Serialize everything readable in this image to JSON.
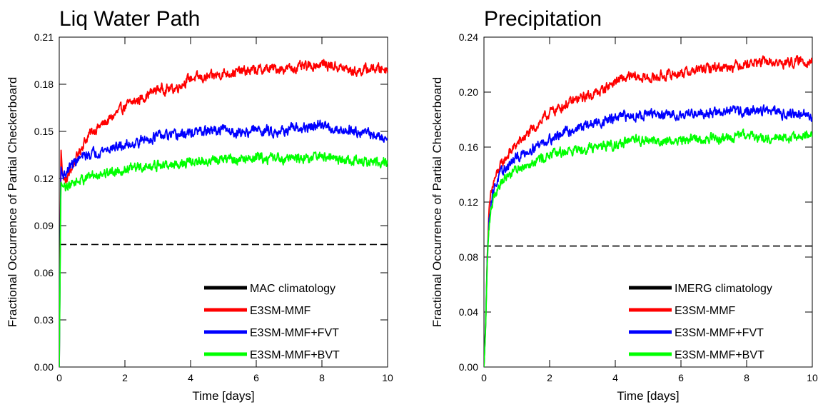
{
  "chart_data": [
    {
      "type": "line",
      "title": "Liq Water Path",
      "xlabel": "Time [days]",
      "ylabel": "Fractional Occurrence of Partial Checkerboard",
      "xlim": [
        0,
        10
      ],
      "ylim": [
        0,
        0.21
      ],
      "xticks": [
        "0",
        "2",
        "4",
        "6",
        "8",
        "10"
      ],
      "yticks": [
        "0.00",
        "0.03",
        "0.06",
        "0.09",
        "0.12",
        "0.15",
        "0.18",
        "0.21"
      ],
      "grid": false,
      "legend_position": "bottom-right",
      "reference_line": {
        "name": "MAC climatology",
        "y": 0.078,
        "color": "#000000",
        "style": "dashed"
      },
      "series": [
        {
          "name": "E3SM-MMF",
          "color": "#ff0000",
          "x": [
            0,
            0.05,
            0.1,
            0.2,
            0.3,
            0.5,
            0.75,
            1,
            1.5,
            2,
            2.5,
            3,
            3.5,
            4,
            4.5,
            5,
            5.5,
            6,
            6.5,
            7,
            7.5,
            8,
            8.5,
            9,
            9.5,
            10
          ],
          "y": [
            0.0,
            0.14,
            0.122,
            0.118,
            0.123,
            0.132,
            0.143,
            0.15,
            0.157,
            0.166,
            0.171,
            0.177,
            0.177,
            0.184,
            0.184,
            0.187,
            0.188,
            0.189,
            0.19,
            0.19,
            0.191,
            0.193,
            0.191,
            0.188,
            0.19,
            0.19
          ]
        },
        {
          "name": "E3SM-MMF+FVT",
          "color": "#0000ff",
          "x": [
            0,
            0.05,
            0.1,
            0.2,
            0.3,
            0.5,
            0.75,
            1,
            1.5,
            2,
            2.5,
            3,
            3.5,
            4,
            4.5,
            5,
            5.5,
            6,
            6.5,
            7,
            7.5,
            8,
            8.5,
            9,
            9.5,
            10
          ],
          "y": [
            0.0,
            0.128,
            0.122,
            0.123,
            0.127,
            0.131,
            0.134,
            0.136,
            0.139,
            0.141,
            0.144,
            0.147,
            0.147,
            0.149,
            0.15,
            0.151,
            0.149,
            0.151,
            0.15,
            0.151,
            0.152,
            0.154,
            0.151,
            0.151,
            0.148,
            0.145
          ]
        },
        {
          "name": "E3SM-MMF+BVT",
          "color": "#00ff00",
          "x": [
            0,
            0.05,
            0.1,
            0.2,
            0.3,
            0.5,
            0.75,
            1,
            1.5,
            2,
            2.5,
            3,
            3.5,
            4,
            4.5,
            5,
            5.5,
            6,
            6.5,
            7,
            7.5,
            8,
            8.5,
            9,
            9.5,
            10
          ],
          "y": [
            0.0,
            0.118,
            0.115,
            0.115,
            0.116,
            0.118,
            0.12,
            0.122,
            0.124,
            0.126,
            0.127,
            0.128,
            0.129,
            0.13,
            0.131,
            0.132,
            0.132,
            0.133,
            0.133,
            0.133,
            0.133,
            0.134,
            0.132,
            0.131,
            0.13,
            0.131
          ]
        }
      ]
    },
    {
      "type": "line",
      "title": "Precipitation",
      "xlabel": "Time [days]",
      "ylabel": "Fractional Occurrence of Partial Checkerboard",
      "xlim": [
        0,
        10
      ],
      "ylim": [
        0,
        0.24
      ],
      "xticks": [
        "0",
        "2",
        "4",
        "6",
        "8",
        "10"
      ],
      "yticks": [
        "0.00",
        "0.04",
        "0.08",
        "0.12",
        "0.16",
        "0.20",
        "0.24"
      ],
      "grid": false,
      "legend_position": "bottom-right",
      "reference_line": {
        "name": "IMERG climatology",
        "y": 0.088,
        "color": "#000000",
        "style": "dashed"
      },
      "series": [
        {
          "name": "E3SM-MMF",
          "color": "#ff0000",
          "x": [
            0,
            0.05,
            0.1,
            0.15,
            0.2,
            0.3,
            0.5,
            0.75,
            1,
            1.5,
            2,
            2.5,
            3,
            3.5,
            4,
            4.5,
            5,
            5.5,
            6,
            6.5,
            7,
            7.5,
            8,
            8.5,
            9,
            9.5,
            10
          ],
          "y": [
            0.0,
            0.03,
            0.08,
            0.11,
            0.123,
            0.135,
            0.146,
            0.155,
            0.162,
            0.173,
            0.185,
            0.191,
            0.196,
            0.2,
            0.208,
            0.211,
            0.21,
            0.212,
            0.214,
            0.216,
            0.218,
            0.219,
            0.221,
            0.222,
            0.221,
            0.222,
            0.223
          ]
        },
        {
          "name": "E3SM-MMF+FVT",
          "color": "#0000ff",
          "x": [
            0,
            0.05,
            0.1,
            0.15,
            0.2,
            0.3,
            0.5,
            0.75,
            1,
            1.5,
            2,
            2.5,
            3,
            3.5,
            4,
            4.5,
            5,
            5.5,
            6,
            6.5,
            7,
            7.5,
            8,
            8.5,
            9,
            9.5,
            10
          ],
          "y": [
            0.0,
            0.03,
            0.078,
            0.105,
            0.118,
            0.13,
            0.14,
            0.147,
            0.152,
            0.16,
            0.166,
            0.171,
            0.175,
            0.178,
            0.181,
            0.183,
            0.184,
            0.183,
            0.184,
            0.185,
            0.185,
            0.186,
            0.186,
            0.187,
            0.185,
            0.184,
            0.182
          ]
        },
        {
          "name": "E3SM-MMF+BVT",
          "color": "#00ff00",
          "x": [
            0,
            0.05,
            0.1,
            0.15,
            0.2,
            0.3,
            0.5,
            0.75,
            1,
            1.5,
            2,
            2.5,
            3,
            3.5,
            4,
            4.5,
            5,
            5.5,
            6,
            6.5,
            7,
            7.5,
            8,
            8.5,
            9,
            9.5,
            10
          ],
          "y": [
            0.0,
            0.028,
            0.075,
            0.1,
            0.113,
            0.125,
            0.134,
            0.14,
            0.144,
            0.15,
            0.154,
            0.157,
            0.159,
            0.161,
            0.162,
            0.164,
            0.165,
            0.164,
            0.165,
            0.166,
            0.166,
            0.167,
            0.168,
            0.167,
            0.166,
            0.167,
            0.168
          ]
        }
      ]
    }
  ]
}
